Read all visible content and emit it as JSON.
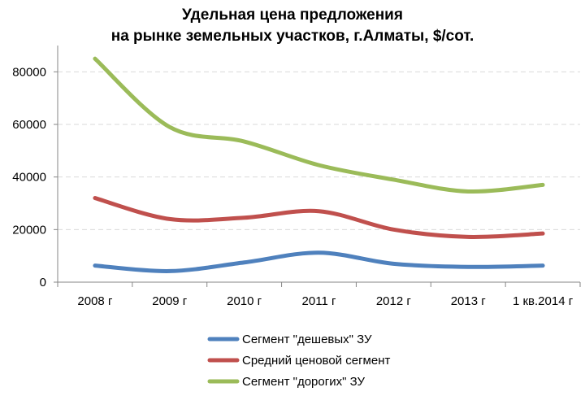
{
  "chart_data": {
    "type": "line",
    "title_line1": "Удельная цена предложения",
    "title_line2": "на рынке земельных участков, г.Алматы, $/сот.",
    "categories": [
      "2008 г",
      "2009 г",
      "2010 г",
      "2011 г",
      "2012 г",
      "2013 г",
      "1 кв.2014 г"
    ],
    "ylim": [
      0,
      90000
    ],
    "yticks": [
      0,
      20000,
      40000,
      60000,
      80000
    ],
    "grid": true,
    "legend_position": "bottom",
    "series": [
      {
        "name": "Сегмент \"дешевых\" ЗУ",
        "color": "#4f81bd",
        "values": [
          6300,
          4200,
          7500,
          11200,
          7000,
          5800,
          6300
        ]
      },
      {
        "name": "Средний ценовой сегмент",
        "color": "#c0504d",
        "values": [
          32000,
          24000,
          24500,
          27000,
          20000,
          17200,
          18500
        ]
      },
      {
        "name": "Сегмент \"дорогих\" ЗУ",
        "color": "#9bbb59",
        "values": [
          85000,
          59000,
          53500,
          44500,
          39000,
          34500,
          37000
        ]
      }
    ]
  }
}
